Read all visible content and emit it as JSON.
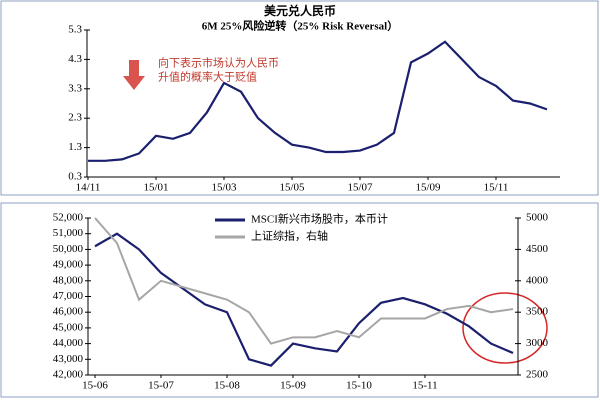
{
  "chart_data": [
    {
      "type": "line",
      "title": "美元兑人民币",
      "subtitle": "6M 25%风险逆转（25% Risk Reversal）",
      "annotation": [
        "向下表示市场认为人民币",
        "升值的概率大于贬值"
      ],
      "categories": [
        "14/11",
        null,
        null,
        null,
        "15/01",
        null,
        null,
        null,
        "15/03",
        null,
        null,
        null,
        "15/05",
        null,
        null,
        null,
        "15/07",
        null,
        null,
        null,
        "15/09",
        null,
        null,
        null,
        "15/11",
        null,
        null,
        null
      ],
      "series": [
        {
          "color": "#1a1f6e",
          "values": [
            0.85,
            0.85,
            0.9,
            1.1,
            1.7,
            1.6,
            1.8,
            2.5,
            3.5,
            3.2,
            2.3,
            1.8,
            1.4,
            1.3,
            1.15,
            1.15,
            1.2,
            1.4,
            1.8,
            4.2,
            4.5,
            4.9,
            4.3,
            3.7,
            3.4,
            2.9,
            2.8,
            2.6
          ]
        }
      ],
      "ylim": [
        0.3,
        5.3
      ],
      "yticks": [
        0.3,
        1.3,
        2.3,
        3.3,
        4.3,
        5.3
      ],
      "grid": false
    },
    {
      "type": "line",
      "categories": [
        "15-06",
        null,
        null,
        "15-07",
        null,
        null,
        "15-08",
        null,
        null,
        "15-09",
        null,
        null,
        "15-10",
        null,
        null,
        "15-11",
        null,
        null,
        null,
        null
      ],
      "series": [
        {
          "name": "MSCI新兴市场股市，本币计",
          "color": "#1a1f6e",
          "values": [
            50200,
            51000,
            50000,
            48500,
            47500,
            46500,
            46000,
            43000,
            42600,
            44000,
            43700,
            43500,
            45300,
            46600,
            46900,
            46500,
            45900,
            45100,
            44000,
            43400
          ]
        },
        {
          "name": "上证综指，右轴",
          "color": "#a6a6a6",
          "axis": "y2",
          "values": [
            5000,
            4600,
            3700,
            4000,
            3900,
            3800,
            3700,
            3500,
            3000,
            3100,
            3100,
            3200,
            3100,
            3400,
            3400,
            3400,
            3550,
            3600,
            3500,
            3550
          ]
        }
      ],
      "ylim": [
        42000,
        52000
      ],
      "yticks": [
        {
          "value": 42000,
          "label": "42,000"
        },
        {
          "value": 43000,
          "label": "43,000"
        },
        {
          "value": 44000,
          "label": "44,000"
        },
        {
          "value": 45000,
          "label": "45,000"
        },
        {
          "value": 46000,
          "label": "46,000"
        },
        {
          "value": 47000,
          "label": "47,000"
        },
        {
          "value": 48000,
          "label": "48,000"
        },
        {
          "value": 49000,
          "label": "49,000"
        },
        {
          "value": 50000,
          "label": "50,000"
        },
        {
          "value": 51000,
          "label": "51,000"
        },
        {
          "value": 52000,
          "label": "52,000"
        }
      ],
      "y2lim": [
        2500,
        5000
      ],
      "y2ticks": [
        2500,
        3000,
        3500,
        4000,
        4500,
        5000
      ],
      "grid": false,
      "legend": "top"
    }
  ]
}
